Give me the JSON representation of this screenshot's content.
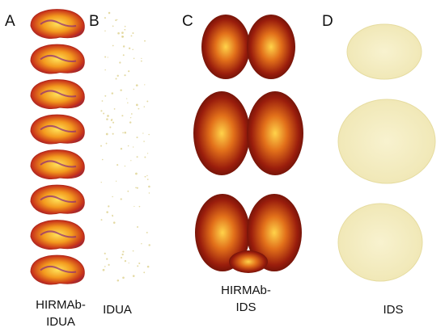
{
  "panels": [
    {
      "label": "A",
      "caption": [
        "HIRMAb-",
        "IDUA"
      ]
    },
    {
      "label": "B",
      "caption": [
        "IDUA"
      ]
    },
    {
      "label": "C",
      "caption": [
        "HIRMAb-",
        "IDS"
      ]
    },
    {
      "label": "D",
      "caption": [
        "IDS"
      ]
    }
  ]
}
